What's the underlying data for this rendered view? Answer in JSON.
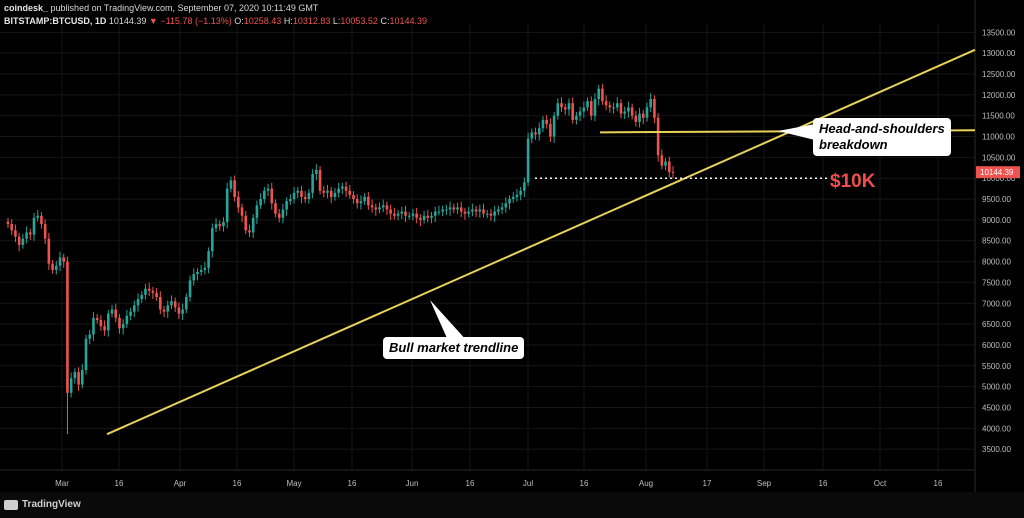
{
  "header": {
    "publisher": "coindesk_",
    "published_text": "published on TradingView.com, September 07, 2020 10:11:49 GMT",
    "symbol": "BITSTAMP:BTCUSD, 1D",
    "last": "10144.39",
    "change": "▼ −115.78 (−1.13%)",
    "o_label": "O:",
    "o_value": "10258.43",
    "h_label": "H:",
    "h_value": "10312.83",
    "l_label": "L:",
    "l_value": "10053.52",
    "c_label": "C:",
    "c_value": "10144.39"
  },
  "footer": {
    "brand": "TradingView"
  },
  "chart_data": {
    "type": "candlestick",
    "x_tick_labels": [
      "Mar",
      "16",
      "Apr",
      "16",
      "May",
      "16",
      "Jun",
      "16",
      "Jul",
      "16",
      "Aug",
      "17",
      "Sep",
      "16",
      "Oct",
      "16"
    ],
    "y_tick_labels": [
      "3500.00",
      "4000.00",
      "4500.00",
      "5000.00",
      "5500.00",
      "6000.00",
      "6500.00",
      "7000.00",
      "7500.00",
      "8000.00",
      "8500.00",
      "9000.00",
      "9500.00",
      "10000.00",
      "10500.00",
      "11000.00",
      "11500.00",
      "12000.00",
      "12500.00",
      "13000.00",
      "13500.00"
    ],
    "ylim": [
      3000,
      13700
    ],
    "last_price_label": "10144.39",
    "close_series": [
      8900,
      8750,
      8600,
      8400,
      8550,
      8700,
      8650,
      9050,
      9100,
      8900,
      8550,
      7950,
      7800,
      7900,
      8100,
      8000,
      4850,
      5200,
      5350,
      5050,
      5400,
      6150,
      6250,
      6650,
      6600,
      6450,
      6350,
      6750,
      6850,
      6650,
      6400,
      6500,
      6700,
      6800,
      6950,
      7100,
      7200,
      7350,
      7300,
      7250,
      7150,
      6850,
      6800,
      6950,
      7050,
      6900,
      6750,
      6850,
      7150,
      7550,
      7700,
      7750,
      7800,
      7850,
      8250,
      8800,
      8900,
      8850,
      8950,
      9750,
      9950,
      9550,
      9300,
      9100,
      8750,
      8700,
      9050,
      9350,
      9500,
      9700,
      9750,
      9400,
      9150,
      9050,
      9250,
      9450,
      9500,
      9650,
      9700,
      9550,
      9500,
      9650,
      10100,
      10200,
      9700,
      9650,
      9700,
      9550,
      9650,
      9750,
      9800,
      9700,
      9600,
      9500,
      9400,
      9450,
      9550,
      9350,
      9300,
      9250,
      9300,
      9350,
      9250,
      9150,
      9100,
      9150,
      9200,
      9100,
      9100,
      9150,
      9050,
      9000,
      9100,
      9050,
      9100,
      9200,
      9200,
      9250,
      9250,
      9300,
      9250,
      9300,
      9200,
      9150,
      9200,
      9250,
      9200,
      9250,
      9150,
      9150,
      9100,
      9200,
      9250,
      9300,
      9400,
      9500,
      9550,
      9600,
      9700,
      9900,
      10950,
      11100,
      11050,
      11200,
      11400,
      11300,
      11000,
      11500,
      11800,
      11700,
      11650,
      11800,
      11400,
      11500,
      11600,
      11700,
      11850,
      11500,
      11900,
      12150,
      11850,
      11750,
      11700,
      11700,
      11800,
      11550,
      11600,
      11700,
      11500,
      11350,
      11550,
      11450,
      11700,
      11900,
      11450,
      10550,
      10300,
      10400,
      10150,
      10144
    ]
  },
  "annotations": {
    "trendline_label": "Bull market trendline",
    "hs_label_line1": "Head-and-shoulders",
    "hs_label_line2": "breakdown",
    "support_label": "$10K"
  },
  "colors": {
    "background": "#000000",
    "up": "#26a69a",
    "down": "#ef5350",
    "trendline": "#e9d25a",
    "grid": "#161616",
    "axis_text": "#bfbfbf",
    "support_label": "#f04e4e"
  }
}
